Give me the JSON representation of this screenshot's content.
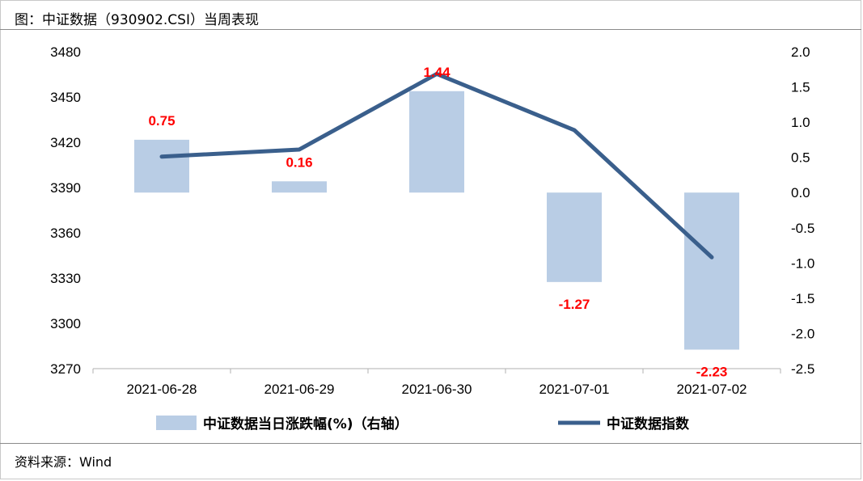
{
  "header": {
    "title": "图：中证数据（930902.CSI）当周表现"
  },
  "footer": {
    "source": "资料来源：Wind"
  },
  "colors": {
    "bar": "#b9cde5",
    "line": "#3a5f8c",
    "label": "#ff0000"
  },
  "chart_data": {
    "type": "bar+line",
    "categories": [
      "2021-06-28",
      "2021-06-29",
      "2021-06-30",
      "2021-07-01",
      "2021-07-02"
    ],
    "series": [
      {
        "name": "中证数据当日涨跌幅(%)（右轴）",
        "type": "bar",
        "axis": "right",
        "values": [
          0.75,
          0.16,
          1.44,
          -1.27,
          -2.23
        ]
      },
      {
        "name": "中证数据指数",
        "type": "line",
        "axis": "left",
        "values": [
          3410.5,
          3415.2,
          3465.3,
          3428.1,
          3343.8
        ]
      }
    ],
    "left_axis": {
      "ylim": [
        3270,
        3480
      ],
      "ticks": [
        "3270",
        "3300",
        "3330",
        "3360",
        "3390",
        "3420",
        "3450",
        "3480"
      ]
    },
    "right_axis": {
      "ylim": [
        -2.5,
        2.0
      ],
      "ticks": [
        "-2.5",
        "-2.0",
        "-1.5",
        "-1.0",
        "-0.5",
        "0.0",
        "0.5",
        "1.0",
        "1.5",
        "2.0"
      ]
    },
    "data_labels": [
      "0.75",
      "0.16",
      "1.44",
      "-1.27",
      "-2.23"
    ],
    "grid": false,
    "legend": "bottom"
  }
}
